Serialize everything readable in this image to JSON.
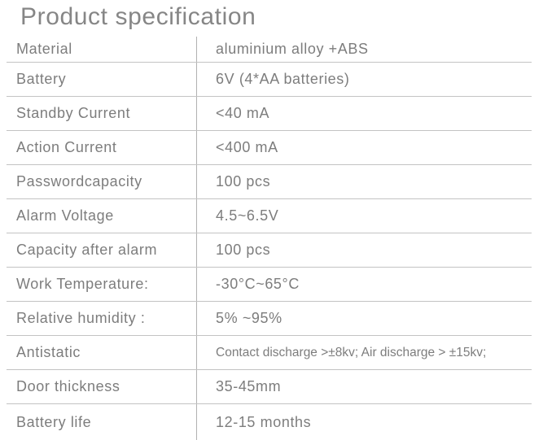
{
  "page": {
    "title": "Product specification"
  },
  "colors": {
    "background": "#ffffff",
    "title_text": "#868686",
    "body_text": "#7d7d7d",
    "row_divider": "#c3c3c3",
    "column_divider": "#b2b2b2"
  },
  "table": {
    "rows": [
      {
        "label": "Material",
        "value": "aluminium alloy +ABS"
      },
      {
        "label": "Battery",
        "value": "6V (4*AA batteries)"
      },
      {
        "label": "Standby Current",
        "value": "<40 mA"
      },
      {
        "label": "Action Current",
        "value": "<400 mA"
      },
      {
        "label": "Passwordcapacity",
        "value": "100 pcs"
      },
      {
        "label": "Alarm Voltage",
        "value": "4.5~6.5V"
      },
      {
        "label": "Capacity after alarm",
        "value": "100 pcs"
      },
      {
        "label": "Work Temperature:",
        "value": "-30°C~65°C"
      },
      {
        "label": "Relative humidity :",
        "value": "5% ~95%"
      },
      {
        "label": "Antistatic",
        "value": "Contact discharge >±8kv; Air discharge > ±15kv;"
      },
      {
        "label": "Door thickness",
        "value": "35-45mm"
      },
      {
        "label": "Battery life",
        "value": "12-15 months"
      }
    ]
  }
}
